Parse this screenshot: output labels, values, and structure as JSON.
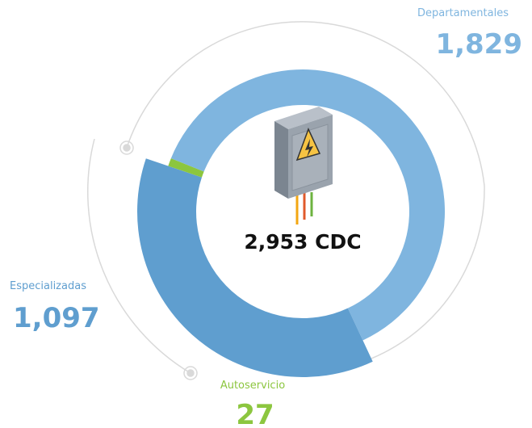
{
  "chart_data": {
    "type": "donut",
    "center_label": "2,953 CDC",
    "categories": [
      "Departamentales",
      "Especializadas",
      "Autoservicio"
    ],
    "values": [
      1829,
      1097,
      27
    ],
    "value_labels": [
      "1,829",
      "1,097",
      "27"
    ],
    "colors": [
      "#7fb5df",
      "#5f9ecf",
      "#8cc63f"
    ]
  }
}
